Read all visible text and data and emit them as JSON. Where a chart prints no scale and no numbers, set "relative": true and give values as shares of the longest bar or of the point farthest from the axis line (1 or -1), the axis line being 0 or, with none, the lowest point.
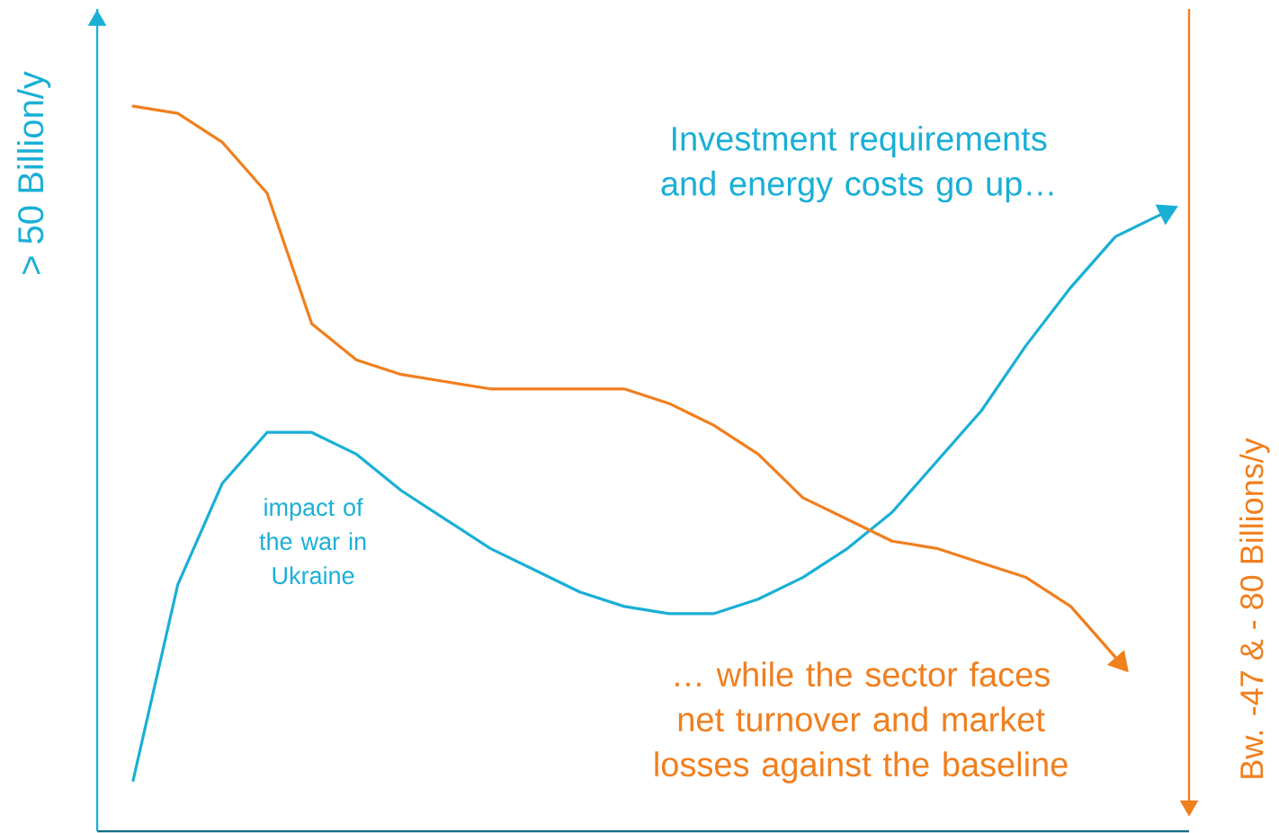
{
  "chart_data": {
    "type": "line",
    "relative": true,
    "ylabel": "> 50 Billion/y",
    "y2label": "Bw. -47 & - 80 Billions/y",
    "categories": [
      null,
      null,
      null,
      null,
      null,
      null,
      null,
      null,
      null,
      null,
      null,
      null,
      null,
      null,
      null,
      null,
      null,
      null,
      null,
      null,
      null,
      null,
      null,
      null
    ],
    "series": [
      {
        "color": "#1aafd6",
        "values": [
          0.07,
          0.34,
          0.48,
          0.55,
          0.55,
          0.52,
          0.47,
          0.43,
          0.39,
          0.36,
          0.33,
          0.31,
          0.3,
          0.3,
          0.32,
          0.35,
          0.39,
          0.44,
          0.51,
          0.58,
          0.67,
          0.75,
          0.82,
          0.85
        ]
      },
      {
        "color": "#f07f1e",
        "values": [
          1.0,
          0.99,
          0.95,
          0.88,
          0.7,
          0.65,
          0.63,
          0.62,
          0.61,
          0.61,
          0.61,
          0.61,
          0.59,
          0.56,
          0.52,
          0.46,
          0.43,
          0.4,
          0.39,
          0.37,
          0.35,
          0.31,
          0.24,
          null
        ]
      }
    ],
    "annotations": [
      "Investment requirements and energy costs go up…",
      "… while the sector faces net turnover and market losses against the baseline",
      "impact of the war in Ukraine"
    ],
    "line_style": "solid"
  }
}
